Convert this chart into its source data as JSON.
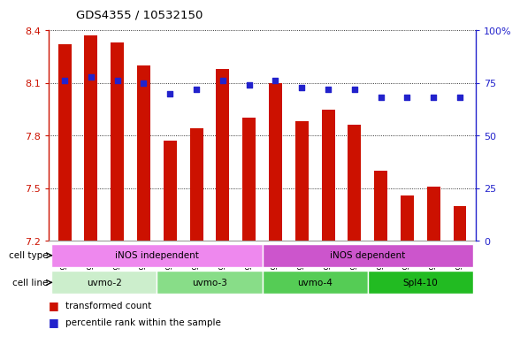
{
  "title": "GDS4355 / 10532150",
  "samples": [
    "GSM796425",
    "GSM796426",
    "GSM796427",
    "GSM796428",
    "GSM796429",
    "GSM796430",
    "GSM796431",
    "GSM796432",
    "GSM796417",
    "GSM796418",
    "GSM796419",
    "GSM796420",
    "GSM796421",
    "GSM796422",
    "GSM796423",
    "GSM796424"
  ],
  "transformed_count": [
    8.32,
    8.37,
    8.33,
    8.2,
    7.77,
    7.84,
    8.18,
    7.9,
    8.1,
    7.88,
    7.95,
    7.86,
    7.6,
    7.46,
    7.51,
    7.4
  ],
  "percentile_rank": [
    76,
    78,
    76,
    75,
    70,
    72,
    76,
    74,
    76,
    73,
    72,
    72,
    68,
    68,
    68,
    68
  ],
  "ylim_left": [
    7.2,
    8.4
  ],
  "ylim_right": [
    0,
    100
  ],
  "yticks_left": [
    7.2,
    7.5,
    7.8,
    8.1,
    8.4
  ],
  "yticks_right": [
    0,
    25,
    50,
    75,
    100
  ],
  "bar_color": "#cc1100",
  "dot_color": "#2222cc",
  "cell_line_groups": [
    {
      "label": "uvmo-2",
      "start": 0,
      "end": 4,
      "color": "#cceecc"
    },
    {
      "label": "uvmo-3",
      "start": 4,
      "end": 8,
      "color": "#88dd88"
    },
    {
      "label": "uvmo-4",
      "start": 8,
      "end": 12,
      "color": "#55cc55"
    },
    {
      "label": "Spl4-10",
      "start": 12,
      "end": 16,
      "color": "#22bb22"
    }
  ],
  "cell_type_groups": [
    {
      "label": "iNOS independent",
      "start": 0,
      "end": 8,
      "color": "#ee88ee"
    },
    {
      "label": "iNOS dependent",
      "start": 8,
      "end": 16,
      "color": "#cc55cc"
    }
  ],
  "cell_line_label": "cell line",
  "cell_type_label": "cell type",
  "legend_bar_label": "transformed count",
  "legend_dot_label": "percentile rank within the sample",
  "left_axis_color": "#cc1100",
  "right_axis_color": "#2222cc",
  "bar_width": 0.5
}
